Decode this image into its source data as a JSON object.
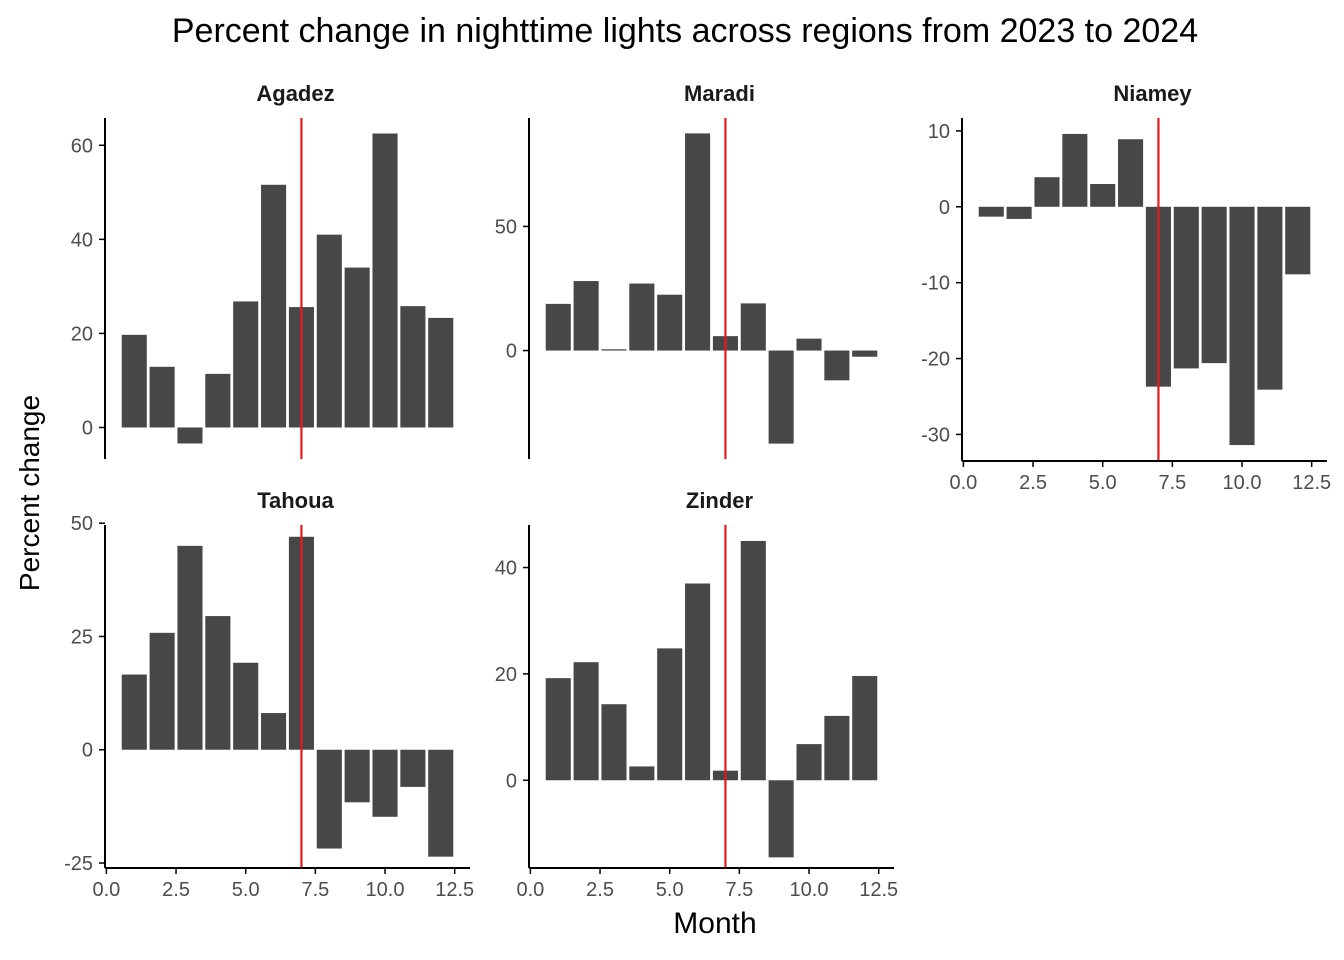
{
  "title": "Percent change in nighttime lights across regions from 2023 to 2024",
  "xlabel": "Month",
  "ylabel": "Percent change",
  "colors": {
    "bar": "#474747",
    "reference_line": "#e41a1c",
    "axis": "#000000",
    "tick_label": "#4d4d4d"
  },
  "chart_data": {
    "type": "bar",
    "layout": "facet-grid",
    "reference_x": 7,
    "x_ticks": [
      0,
      2.5,
      5,
      7.5,
      10,
      12.5
    ],
    "x_tick_labels": [
      "0.0",
      "2.5",
      "5.0",
      "7.5",
      "10.0",
      "12.5"
    ],
    "xlim": [
      -0.05,
      13.05
    ],
    "panels": [
      {
        "name": "Agadez",
        "months": [
          1,
          2,
          3,
          4,
          5,
          6,
          7,
          8,
          9,
          10,
          11,
          12
        ],
        "values": [
          19.7,
          12.9,
          -3.4,
          11.4,
          26.8,
          51.6,
          25.6,
          41.0,
          34.0,
          62.5,
          25.8,
          23.3
        ],
        "ylim": [
          -6.7,
          65.8
        ],
        "y_ticks": [
          0,
          20,
          40,
          60
        ],
        "y_tick_labels": [
          "0",
          "20",
          "40",
          "60"
        ],
        "show_x_axis": false
      },
      {
        "name": "Maradi",
        "months": [
          1,
          2,
          3,
          4,
          5,
          6,
          7,
          8,
          9,
          10,
          11,
          12
        ],
        "values": [
          18.8,
          28.0,
          0.5,
          27.0,
          22.5,
          87.5,
          5.8,
          19.0,
          -37.5,
          4.8,
          -12.0,
          -2.5
        ],
        "ylim": [
          -43.7,
          93.7
        ],
        "y_ticks": [
          0,
          50
        ],
        "y_tick_labels": [
          "0",
          "50"
        ],
        "show_x_axis": false
      },
      {
        "name": "Niamey",
        "months": [
          1,
          2,
          3,
          4,
          5,
          6,
          7,
          8,
          9,
          10,
          11,
          12
        ],
        "values": [
          -1.3,
          -1.6,
          3.9,
          9.6,
          3.0,
          8.9,
          -23.7,
          -21.3,
          -20.6,
          -31.4,
          -24.1,
          -8.9
        ],
        "ylim": [
          -33.5,
          11.7
        ],
        "y_ticks": [
          10,
          0,
          -10,
          -20,
          -30
        ],
        "y_tick_labels": [
          "10",
          "0",
          "-10",
          "-20",
          "-30"
        ],
        "show_x_axis": true
      },
      {
        "name": "Tahoua",
        "months": [
          1,
          2,
          3,
          4,
          5,
          6,
          7,
          8,
          9,
          10,
          11,
          12
        ],
        "values": [
          16.6,
          25.8,
          45.0,
          29.5,
          19.2,
          8.1,
          47.0,
          -21.8,
          -11.6,
          -14.8,
          -8.2,
          -23.6
        ],
        "ylim": [
          -26.1,
          49.6
        ],
        "y_ticks": [
          50,
          25,
          0,
          -25
        ],
        "y_tick_labels": [
          "50",
          "25",
          "0",
          "-25"
        ],
        "show_x_axis": true
      },
      {
        "name": "Zinder",
        "months": [
          1,
          2,
          3,
          4,
          5,
          6,
          7,
          8,
          9,
          10,
          11,
          12
        ],
        "values": [
          19.2,
          22.2,
          14.3,
          2.6,
          24.8,
          37.0,
          1.8,
          45.0,
          -14.5,
          6.8,
          12.1,
          19.6
        ],
        "ylim": [
          -16.5,
          48.0
        ],
        "y_ticks": [
          0,
          20,
          40
        ],
        "y_tick_labels": [
          "0",
          "20",
          "40"
        ],
        "show_x_axis": true
      }
    ]
  }
}
